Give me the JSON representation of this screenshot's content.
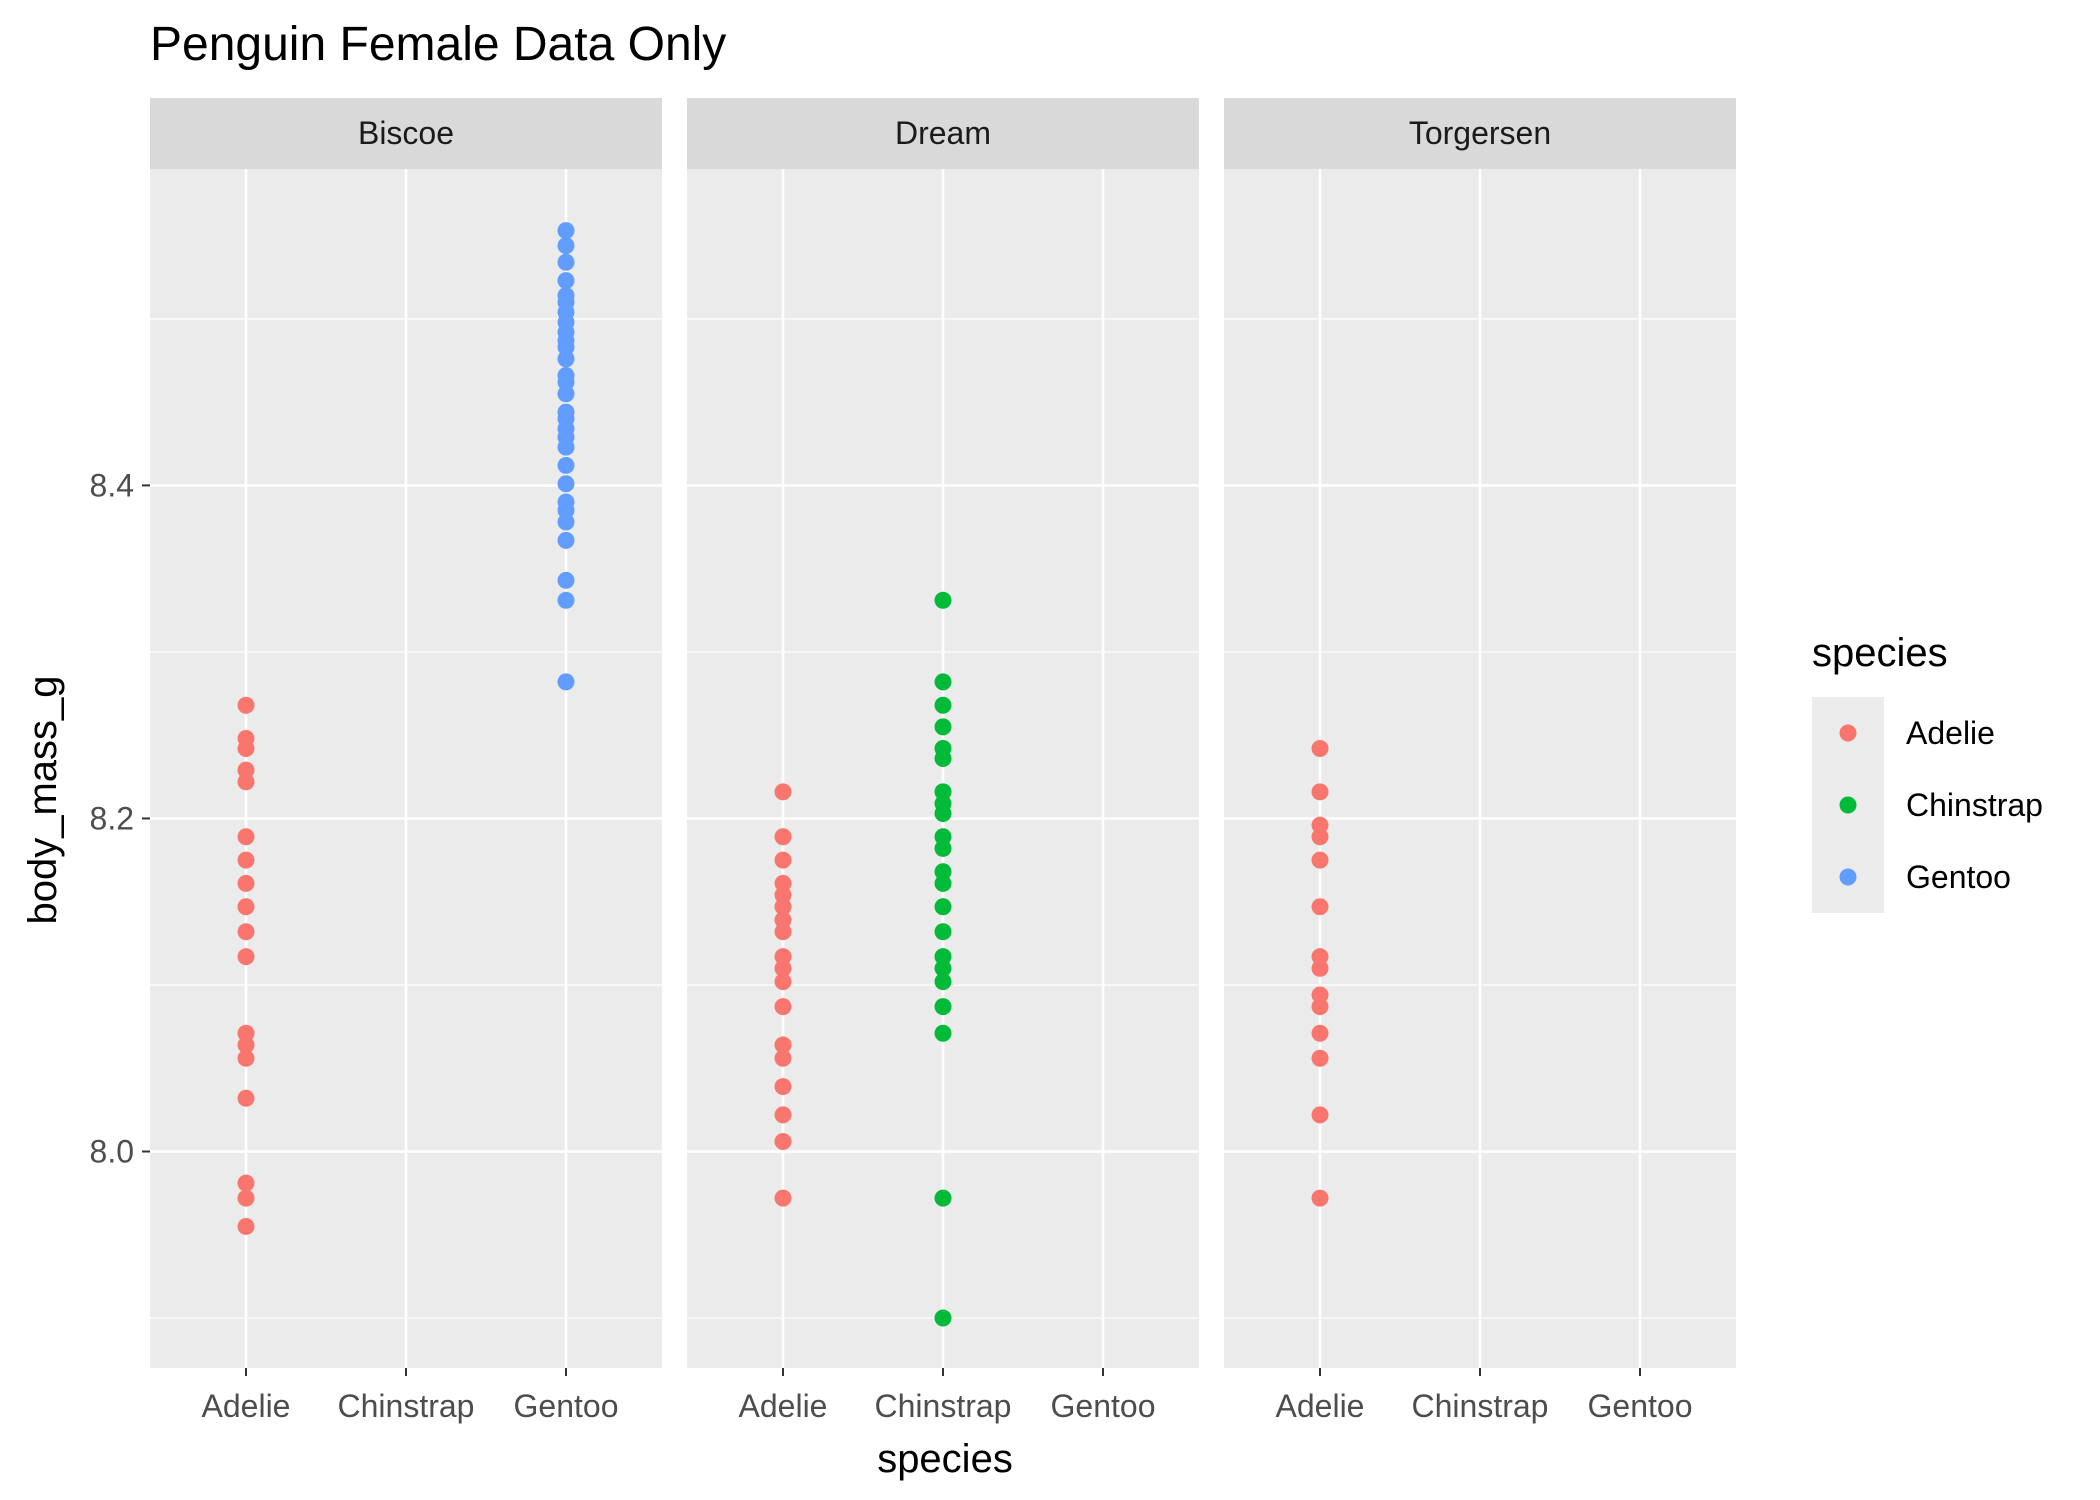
{
  "chart_data": {
    "type": "scatter",
    "title": "Penguin Female Data Only",
    "xlabel": "species",
    "ylabel": "body_mass_g",
    "categories": [
      "Adelie",
      "Chinstrap",
      "Gentoo"
    ],
    "ylim": [
      7.87,
      8.59
    ],
    "y_ticks": [
      "8.0",
      "8.2",
      "8.4"
    ],
    "y_tick_values": [
      8.0,
      8.2,
      8.4
    ],
    "y_minor_ticks": [
      7.9,
      8.1,
      8.3,
      8.5
    ],
    "grid": true,
    "legend": {
      "title": "species",
      "position": "right",
      "items": [
        {
          "label": "Adelie",
          "color": "#F8766D"
        },
        {
          "label": "Chinstrap",
          "color": "#00BA38"
        },
        {
          "label": "Gentoo",
          "color": "#619CFF"
        }
      ]
    },
    "facets": [
      {
        "label": "Biscoe",
        "series": [
          {
            "category": "Adelie",
            "color": "#F8766D",
            "y": [
              8.268,
              8.248,
              8.242,
              8.229,
              8.222,
              8.189,
              8.175,
              8.161,
              8.147,
              8.132,
              8.117,
              8.071,
              8.064,
              8.056,
              8.032,
              7.981,
              7.972,
              7.955
            ]
          },
          {
            "category": "Gentoo",
            "color": "#619CFF",
            "y": [
              8.553,
              8.544,
              8.534,
              8.523,
              8.514,
              8.51,
              8.504,
              8.498,
              8.492,
              8.487,
              8.483,
              8.476,
              8.466,
              8.462,
              8.455,
              8.444,
              8.44,
              8.434,
              8.429,
              8.423,
              8.412,
              8.401,
              8.39,
              8.385,
              8.378,
              8.367,
              8.343,
              8.331,
              8.282
            ]
          }
        ]
      },
      {
        "label": "Dream",
        "series": [
          {
            "category": "Adelie",
            "color": "#F8766D",
            "y": [
              8.216,
              8.189,
              8.175,
              8.161,
              8.154,
              8.147,
              8.139,
              8.132,
              8.117,
              8.11,
              8.102,
              8.087,
              8.064,
              8.056,
              8.039,
              8.022,
              8.006,
              7.972
            ]
          },
          {
            "category": "Chinstrap",
            "color": "#00BA38",
            "y": [
              8.331,
              8.282,
              8.268,
              8.255,
              8.242,
              8.236,
              8.216,
              8.209,
              8.203,
              8.189,
              8.182,
              8.168,
              8.161,
              8.147,
              8.132,
              8.117,
              8.11,
              8.102,
              8.087,
              8.071,
              7.972,
              7.9
            ]
          }
        ]
      },
      {
        "label": "Torgersen",
        "series": [
          {
            "category": "Adelie",
            "color": "#F8766D",
            "y": [
              8.242,
              8.216,
              8.196,
              8.189,
              8.175,
              8.147,
              8.117,
              8.11,
              8.094,
              8.087,
              8.071,
              8.056,
              8.022,
              7.972
            ]
          }
        ]
      }
    ]
  }
}
